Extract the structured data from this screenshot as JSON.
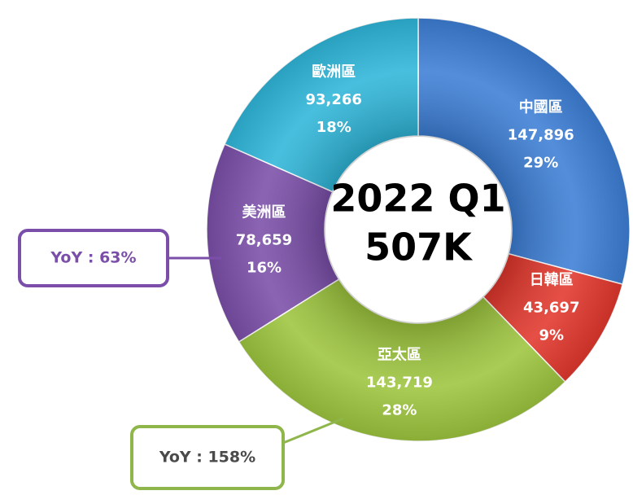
{
  "chart_data": {
    "type": "donut",
    "center_text": [
      "2022 Q1",
      "507K"
    ],
    "categories": [
      "中國區",
      "日韓區",
      "亞太區",
      "美洲區",
      "歐洲區"
    ],
    "values": [
      147896,
      43697,
      143719,
      78659,
      93266
    ],
    "value_labels": [
      "147,896",
      "43,697",
      "143,719",
      "78,659",
      "93,266"
    ],
    "percent_labels": [
      "29%",
      "9%",
      "28%",
      "16%",
      "18%"
    ],
    "colors": [
      "#3d7fd6",
      "#e2372c",
      "#9dc53e",
      "#7b4fa9",
      "#2fb6d9"
    ],
    "annotations": [
      {
        "text": "YoY : 63%",
        "color": "#7b4fa9"
      },
      {
        "text": "YoY : 158%",
        "color": "#8fb64a"
      }
    ]
  }
}
